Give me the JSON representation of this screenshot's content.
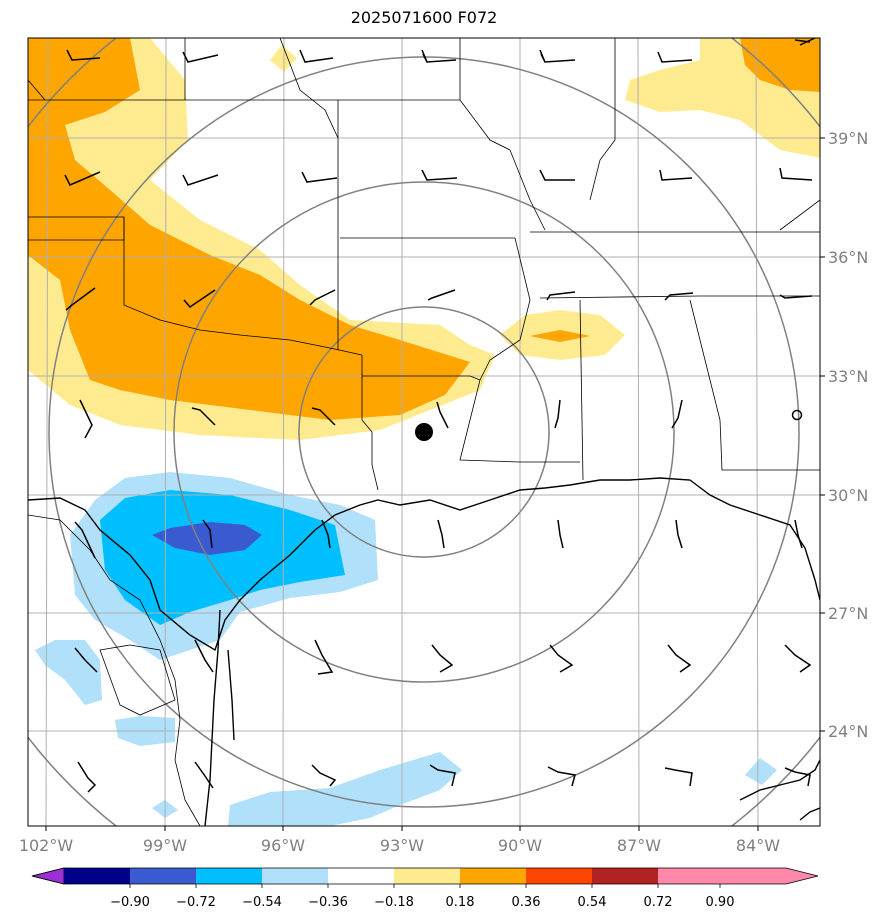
{
  "title": "2025071600 F072",
  "lon_ticks": [
    "102°W",
    "99°W",
    "96°W",
    "93°W",
    "90°W",
    "87°W",
    "84°W"
  ],
  "lat_ticks": [
    "39°N",
    "36°N",
    "33°N",
    "30°N",
    "27°N",
    "24°N"
  ],
  "colorbar": {
    "labels": [
      "−0.90",
      "−0.72",
      "−0.54",
      "−0.36",
      "−0.18",
      "0.18",
      "0.36",
      "0.54",
      "0.72",
      "0.90"
    ],
    "colors": [
      "#9b30d9",
      "#00008b",
      "#3a5bd0",
      "#00bfff",
      "#b0e0fa",
      "#ffffff",
      "#ffeb8f",
      "#ffa500",
      "#ff4500",
      "#b22222",
      "#ff88aa"
    ]
  },
  "fill_colors": {
    "light_yellow": "#ffeb8f",
    "orange": "#ffa500",
    "light_blue": "#b0e0fa",
    "blue": "#00bfff",
    "dark_blue": "#3a5bd0"
  },
  "center_marker": "filled-circle"
}
